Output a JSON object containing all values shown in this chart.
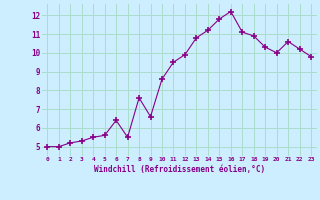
{
  "x": [
    0,
    1,
    2,
    3,
    4,
    5,
    6,
    7,
    8,
    9,
    10,
    11,
    12,
    13,
    14,
    15,
    16,
    17,
    18,
    19,
    20,
    21,
    22,
    23
  ],
  "y": [
    5.0,
    5.0,
    5.2,
    5.3,
    5.5,
    5.6,
    6.4,
    5.5,
    7.6,
    6.6,
    8.6,
    9.5,
    9.9,
    10.8,
    11.2,
    11.8,
    12.2,
    11.1,
    10.9,
    10.3,
    10.0,
    10.6,
    10.2,
    9.8
  ],
  "line_color": "#880088",
  "marker": "+",
  "marker_size": 4,
  "marker_lw": 1.2,
  "bg_color": "#cceeff",
  "grid_color": "#aaddcc",
  "xlabel": "Windchill (Refroidissement éolien,°C)",
  "xlim": [
    -0.5,
    23.5
  ],
  "ylim": [
    4.5,
    12.6
  ],
  "yticks": [
    5,
    6,
    7,
    8,
    9,
    10,
    11,
    12
  ],
  "xticks": [
    0,
    1,
    2,
    3,
    4,
    5,
    6,
    7,
    8,
    9,
    10,
    11,
    12,
    13,
    14,
    15,
    16,
    17,
    18,
    19,
    20,
    21,
    22,
    23
  ],
  "axis_label_color": "#880088",
  "tick_color": "#880088"
}
